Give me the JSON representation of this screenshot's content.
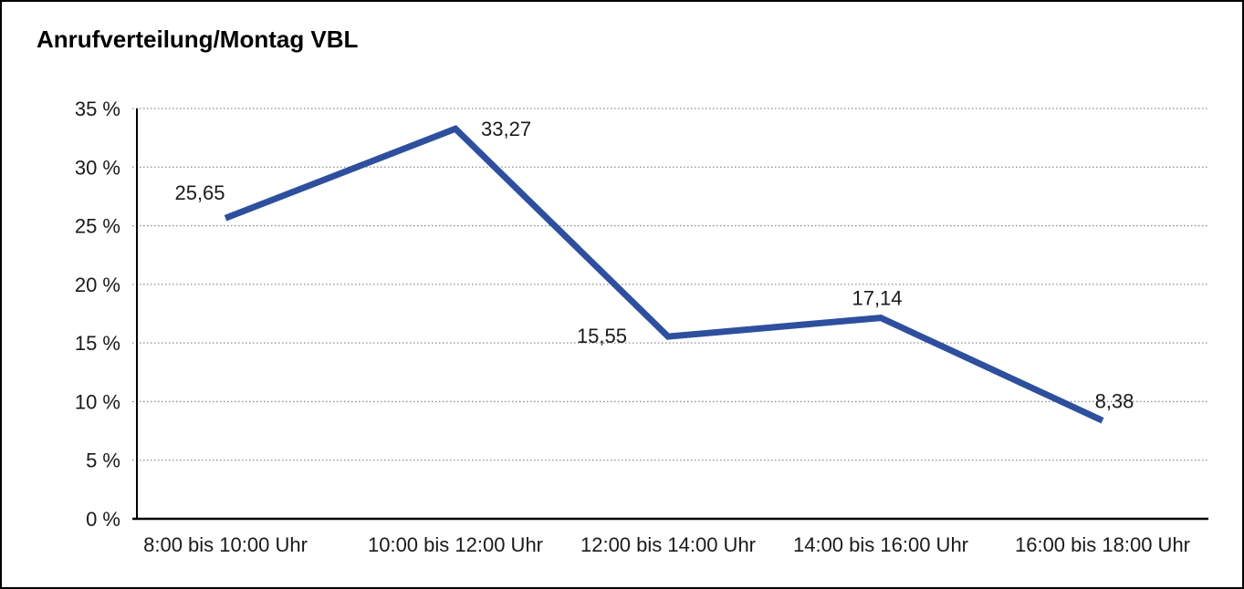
{
  "chart_data": {
    "type": "line",
    "title": "Anrufverteilung/Montag VBL",
    "categories": [
      "8:00 bis 10:00 Uhr",
      "10:00 bis 12:00 Uhr",
      "12:00 bis 14:00 Uhr",
      "14:00 bis 16:00 Uhr",
      "16:00 bis 18:00 Uhr"
    ],
    "values": [
      25.65,
      33.27,
      15.55,
      17.14,
      8.38
    ],
    "value_labels": [
      "25,65",
      "33,27",
      "15,55",
      "17,14",
      "8,38"
    ],
    "xlabel": "",
    "ylabel": "",
    "ylim": [
      0,
      35
    ],
    "ytick_step": 5,
    "ytick_labels": [
      "0 %",
      "5 %",
      "10 %",
      "15 %",
      "20 %",
      "25 %",
      "30 %",
      "35 %"
    ],
    "grid": "horizontal-dotted",
    "legend": "none",
    "colors": {
      "line": "#2e4f9e",
      "axis": "#000000",
      "gridline": "#8c8c8c",
      "text": "#1a1a1a"
    }
  }
}
